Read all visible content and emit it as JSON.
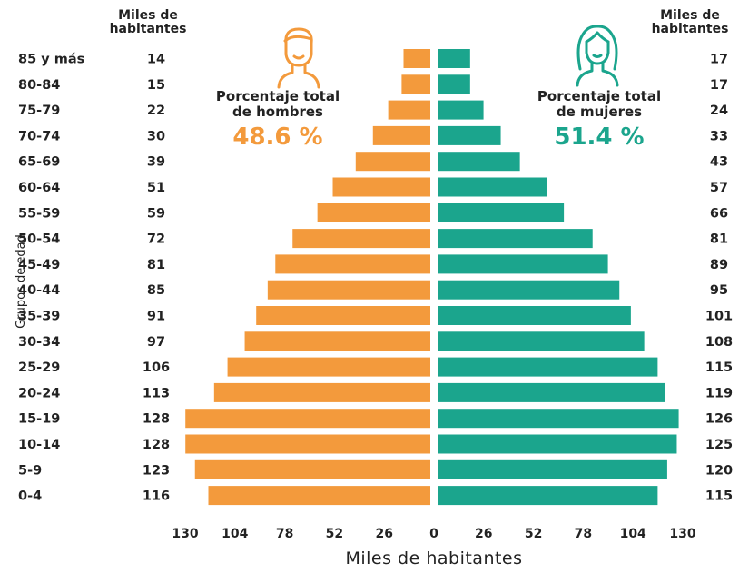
{
  "header_left": "Miles de habitantes",
  "header_right": "Miles de habitantes",
  "men": {
    "label": "Porcentaje total de hombres",
    "value": "48.6 %",
    "icon": "man-icon"
  },
  "women": {
    "label": "Porcentaje total de mujeres",
    "value": "51.4 %",
    "icon": "woman-icon"
  },
  "colors": {
    "men": "#F39A3C",
    "women": "#1BA58D"
  },
  "chart_data": {
    "type": "bar",
    "orientation": "horizontal-pyramid",
    "xlabel": "Miles de habitantes",
    "ylabel": "Grupos de edad",
    "xlim": [
      -130,
      130
    ],
    "xticks": [
      130,
      104,
      78,
      52,
      26,
      0,
      26,
      52,
      78,
      104,
      130
    ],
    "categories": [
      "85 y más",
      "80-84",
      "75-79",
      "70-74",
      "65-69",
      "60-64",
      "55-59",
      "50-54",
      "45-49",
      "40-44",
      "35-39",
      "30-34",
      "25-29",
      "20-24",
      "15-19",
      "10-14",
      "5-9",
      "0-4"
    ],
    "series": [
      {
        "values": [
          14,
          15,
          22,
          30,
          39,
          51,
          59,
          72,
          81,
          85,
          91,
          97,
          106,
          113,
          128,
          128,
          123,
          116
        ]
      },
      {
        "values": [
          17,
          17,
          24,
          33,
          43,
          57,
          66,
          81,
          89,
          95,
          101,
          108,
          115,
          119,
          126,
          125,
          120,
          115
        ]
      }
    ]
  }
}
